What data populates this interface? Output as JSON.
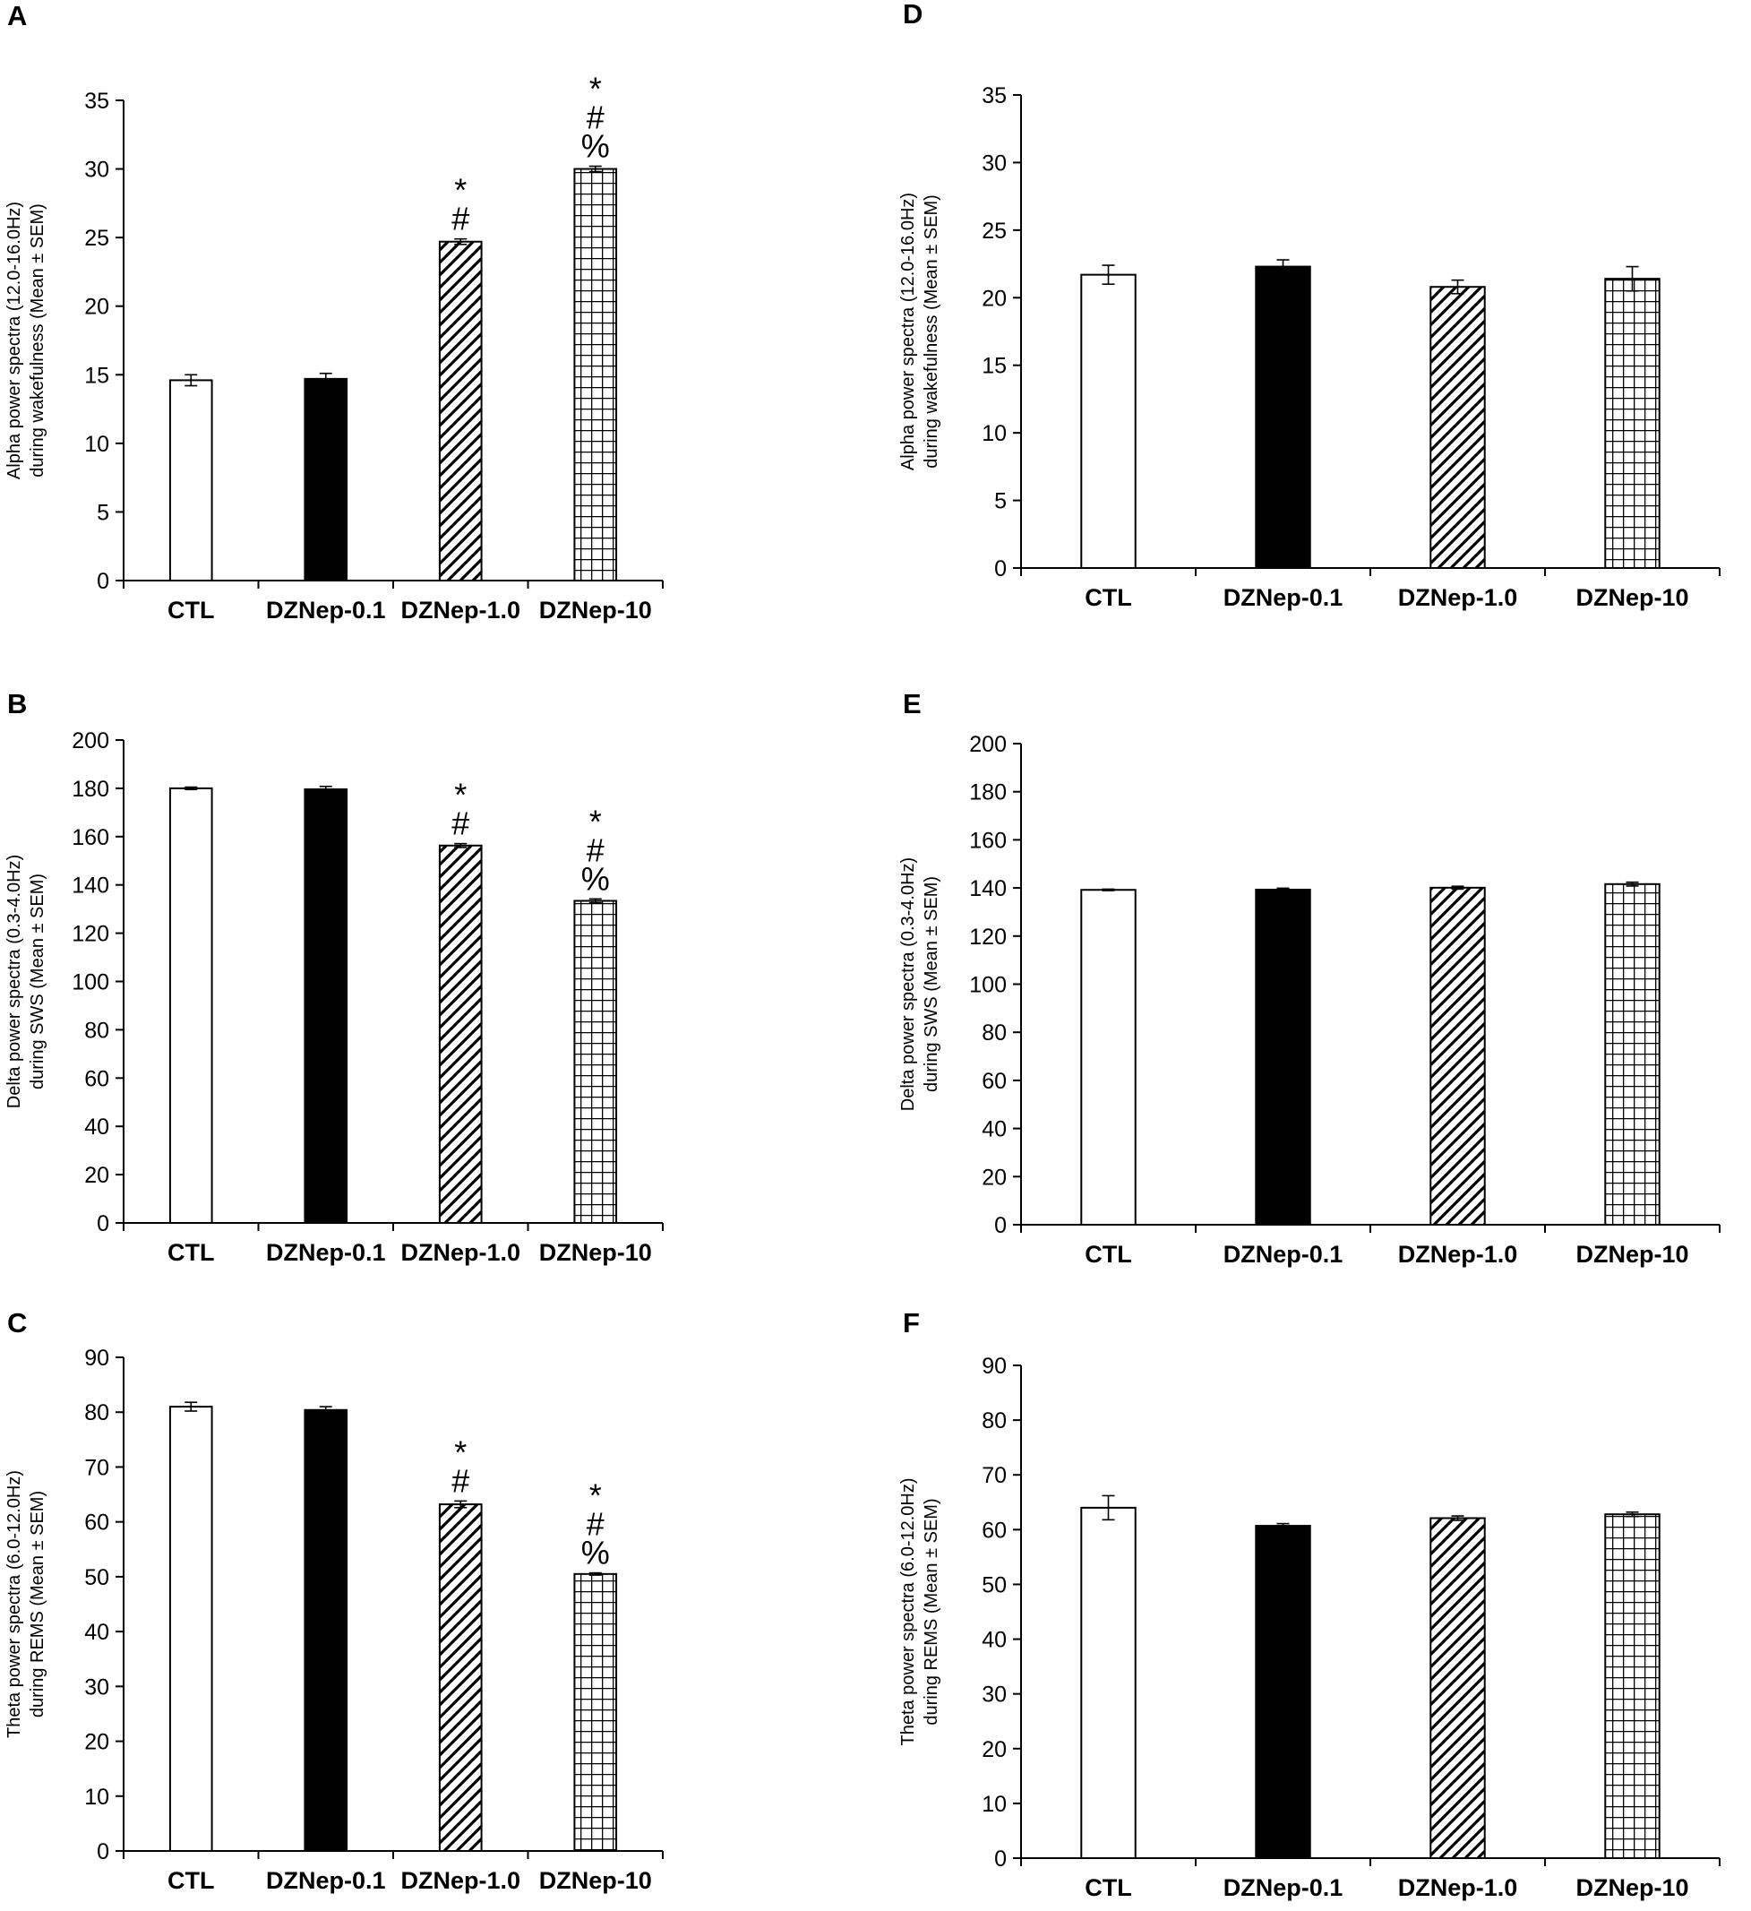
{
  "figure": {
    "categories": [
      "CTL",
      "DZNep-0.1",
      "DZNep-1.0",
      "DZNep-10"
    ],
    "bar_patterns": [
      "white",
      "black",
      "diagonal",
      "grid"
    ]
  },
  "chart_data": [
    {
      "panel": "A",
      "type": "bar",
      "categories": [
        "CTL",
        "DZNep-0.1",
        "DZNep-1.0",
        "DZNep-10"
      ],
      "values": [
        14.6,
        14.7,
        24.7,
        30.0
      ],
      "errors": [
        0.4,
        0.4,
        0.2,
        0.2
      ],
      "annotations": [
        [],
        [],
        [
          "*",
          "#"
        ],
        [
          "*",
          "#",
          "%"
        ]
      ],
      "ylabel_line1": "Alpha power spectra (12.0-16.0Hz)",
      "ylabel_line2": "during wakefulness (Mean ± SEM)",
      "ylim": [
        0,
        35
      ],
      "ytick_step": 5
    },
    {
      "panel": "B",
      "type": "bar",
      "categories": [
        "CTL",
        "DZNep-0.1",
        "DZNep-1.0",
        "DZNep-10"
      ],
      "values": [
        180.0,
        179.6,
        156.3,
        133.4
      ],
      "errors": [
        0.5,
        1.2,
        0.8,
        0.8
      ],
      "annotations": [
        [],
        [],
        [
          "*",
          "#"
        ],
        [
          "*",
          "#",
          "%"
        ]
      ],
      "ylabel_line1": "Delta power spectra (0.3-4.0Hz)",
      "ylabel_line2": "during SWS (Mean ± SEM)",
      "ylim": [
        0,
        200
      ],
      "ytick_step": 20
    },
    {
      "panel": "C",
      "type": "bar",
      "categories": [
        "CTL",
        "DZNep-0.1",
        "DZNep-1.0",
        "DZNep-10"
      ],
      "values": [
        81.0,
        80.4,
        63.2,
        50.5
      ],
      "errors": [
        0.8,
        0.6,
        0.6,
        0.2
      ],
      "annotations": [
        [],
        [],
        [
          "*",
          "#"
        ],
        [
          "*",
          "#",
          "%"
        ]
      ],
      "ylabel_line1": "Theta power spectra (6.0-12.0Hz)",
      "ylabel_line2": "during REMS (Mean ± SEM)",
      "ylim": [
        0,
        90
      ],
      "ytick_step": 10
    },
    {
      "panel": "D",
      "type": "bar",
      "categories": [
        "CTL",
        "DZNep-0.1",
        "DZNep-1.0",
        "DZNep-10"
      ],
      "values": [
        21.7,
        22.3,
        20.8,
        21.4
      ],
      "errors": [
        0.7,
        0.5,
        0.5,
        0.9
      ],
      "annotations": [
        [],
        [],
        [],
        []
      ],
      "ylabel_line1": "Alpha power spectra (12.0-16.0Hz)",
      "ylabel_line2": "during wakefulness (Mean ± SEM)",
      "ylim": [
        0,
        35
      ],
      "ytick_step": 5
    },
    {
      "panel": "E",
      "type": "bar",
      "categories": [
        "CTL",
        "DZNep-0.1",
        "DZNep-1.0",
        "DZNep-10"
      ],
      "values": [
        139.2,
        139.3,
        140.1,
        141.6
      ],
      "errors": [
        0.3,
        0.6,
        0.6,
        0.8
      ],
      "annotations": [
        [],
        [],
        [],
        []
      ],
      "ylabel_line1": "Delta power spectra (0.3-4.0Hz)",
      "ylabel_line2": "during SWS (Mean ± SEM)",
      "ylim": [
        0,
        200
      ],
      "ytick_step": 20
    },
    {
      "panel": "F",
      "type": "bar",
      "categories": [
        "CTL",
        "DZNep-0.1",
        "DZNep-1.0",
        "DZNep-10"
      ],
      "values": [
        64.0,
        60.7,
        62.1,
        62.8
      ],
      "errors": [
        2.2,
        0.4,
        0.4,
        0.4
      ],
      "annotations": [
        [],
        [],
        [],
        []
      ],
      "ylabel_line1": "Theta power spectra (6.0-12.0Hz)",
      "ylabel_line2": "during REMS (Mean ± SEM)",
      "ylim": [
        0,
        90
      ],
      "ytick_step": 10
    }
  ]
}
